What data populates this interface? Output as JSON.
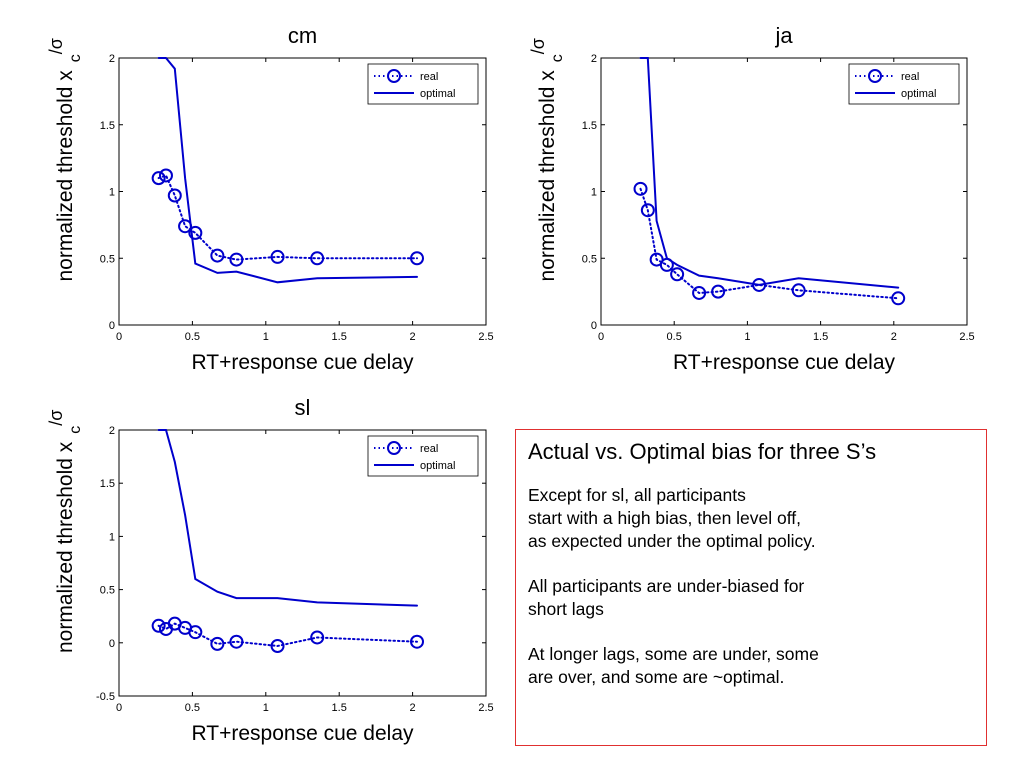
{
  "chart_data": [
    {
      "type": "line",
      "title": "cm",
      "xlabel": "RT+response cue delay",
      "ylabel": "normalized threshold x",
      "ylabel_sub": "c",
      "ylabel_sup": "/σ",
      "xlim": [
        0,
        2.5
      ],
      "ylim": [
        0,
        2
      ],
      "xticks": [
        "0",
        "0.5",
        "1",
        "1.5",
        "2",
        "2.5"
      ],
      "yticks": [
        "0",
        "0.5",
        "1",
        "1.5",
        "2"
      ],
      "legend": [
        "real",
        "optimal"
      ],
      "legend_position": "top-right",
      "grid": false,
      "series": [
        {
          "name": "real",
          "style": "dotted-circles",
          "color": "#0000cc",
          "x": [
            0.27,
            0.32,
            0.38,
            0.45,
            0.52,
            0.67,
            0.8,
            1.08,
            1.35,
            2.03
          ],
          "y": [
            1.1,
            1.12,
            0.97,
            0.74,
            0.69,
            0.52,
            0.49,
            0.51,
            0.5,
            0.5
          ]
        },
        {
          "name": "optimal",
          "style": "solid",
          "color": "#0000cc",
          "x": [
            0.27,
            0.32,
            0.38,
            0.45,
            0.52,
            0.67,
            0.8,
            1.08,
            1.35,
            2.03
          ],
          "y": [
            2.0,
            2.0,
            1.92,
            1.1,
            0.46,
            0.39,
            0.4,
            0.32,
            0.35,
            0.36
          ]
        }
      ]
    },
    {
      "type": "line",
      "title": "ja",
      "xlabel": "RT+response cue delay",
      "ylabel": "normalized threshold x",
      "ylabel_sub": "c",
      "ylabel_sup": "/σ",
      "xlim": [
        0,
        2.5
      ],
      "ylim": [
        0,
        2
      ],
      "xticks": [
        "0",
        "0.5",
        "1",
        "1.5",
        "2",
        "2.5"
      ],
      "yticks": [
        "0",
        "0.5",
        "1",
        "1.5",
        "2"
      ],
      "legend": [
        "real",
        "optimal"
      ],
      "legend_position": "top-right",
      "grid": false,
      "series": [
        {
          "name": "real",
          "style": "dotted-circles",
          "color": "#0000cc",
          "x": [
            0.27,
            0.32,
            0.38,
            0.45,
            0.52,
            0.67,
            0.8,
            1.08,
            1.35,
            2.03
          ],
          "y": [
            1.02,
            0.86,
            0.49,
            0.45,
            0.38,
            0.24,
            0.25,
            0.3,
            0.26,
            0.2
          ]
        },
        {
          "name": "optimal",
          "style": "solid",
          "color": "#0000cc",
          "x": [
            0.27,
            0.32,
            0.38,
            0.45,
            0.52,
            0.67,
            0.8,
            1.08,
            1.35,
            2.03
          ],
          "y": [
            2.0,
            2.0,
            0.78,
            0.5,
            0.45,
            0.37,
            0.35,
            0.3,
            0.35,
            0.28
          ]
        }
      ]
    },
    {
      "type": "line",
      "title": "sl",
      "xlabel": "RT+response cue delay",
      "ylabel": "normalized threshold x",
      "ylabel_sub": "c",
      "ylabel_sup": "/σ",
      "xlim": [
        0,
        2.5
      ],
      "ylim": [
        -0.5,
        2
      ],
      "xticks": [
        "0",
        "0.5",
        "1",
        "1.5",
        "2",
        "2.5"
      ],
      "yticks": [
        "-0.5",
        "0",
        "0.5",
        "1",
        "1.5",
        "2"
      ],
      "legend": [
        "real",
        "optimal"
      ],
      "legend_position": "top-right",
      "grid": false,
      "series": [
        {
          "name": "real",
          "style": "dotted-circles",
          "color": "#0000cc",
          "x": [
            0.27,
            0.32,
            0.38,
            0.45,
            0.52,
            0.67,
            0.8,
            1.08,
            1.35,
            2.03
          ],
          "y": [
            0.16,
            0.13,
            0.18,
            0.14,
            0.1,
            -0.01,
            0.01,
            -0.03,
            0.05,
            0.01
          ]
        },
        {
          "name": "optimal",
          "style": "solid",
          "color": "#0000cc",
          "x": [
            0.27,
            0.32,
            0.38,
            0.45,
            0.52,
            0.67,
            0.8,
            1.08,
            1.35,
            2.03
          ],
          "y": [
            2.0,
            2.0,
            1.7,
            1.2,
            0.6,
            0.48,
            0.42,
            0.42,
            0.38,
            0.35
          ]
        }
      ]
    }
  ],
  "notes": {
    "heading": "Actual vs. Optimal bias for three S’s",
    "para1": [
      "Except for sl, all participants",
      "start with a high bias, then level off,",
      "as expected under the optimal policy."
    ],
    "para2": [
      "All participants are under-biased for",
      "short lags"
    ],
    "para3": [
      "At longer lags, some are under, some",
      "are over, and some are ~optimal."
    ]
  }
}
